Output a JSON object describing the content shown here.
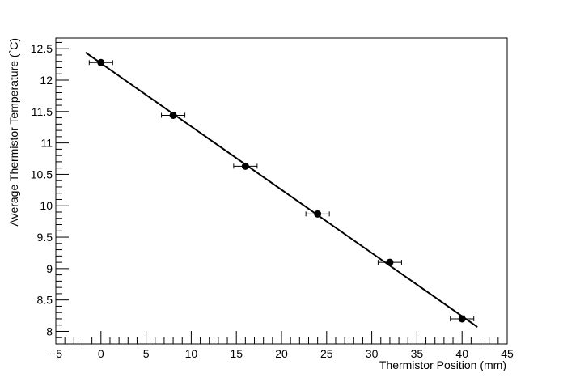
{
  "chart_data": {
    "type": "scatter",
    "title": "",
    "xlabel": "Thermistor Position (mm)",
    "ylabel": "Average Thermistor Temperature (˚C)",
    "xlim": [
      -5,
      45
    ],
    "ylim": [
      7.8,
      12.67
    ],
    "grid": false,
    "x_ticks": [
      -5,
      0,
      5,
      10,
      15,
      20,
      25,
      30,
      35,
      40,
      45
    ],
    "x_tick_labels": [
      "−5",
      "0",
      "5",
      "10",
      "15",
      "20",
      "25",
      "30",
      "35",
      "40",
      "45"
    ],
    "y_ticks": [
      8,
      8.5,
      9,
      9.5,
      10,
      10.5,
      11,
      11.5,
      12,
      12.5
    ],
    "y_tick_labels": [
      "8",
      "8.5",
      "9",
      "9.5",
      "10",
      "10.5",
      "11",
      "11.5",
      "12",
      "12.5"
    ],
    "series": [
      {
        "type": "scatter",
        "x": [
          0,
          8,
          16,
          24,
          32,
          40
        ],
        "y": [
          12.28,
          11.44,
          10.63,
          9.87,
          9.1,
          8.2
        ],
        "x_err": [
          1.3,
          1.3,
          1.3,
          1.3,
          1.3,
          1.3
        ],
        "color": "#000000"
      },
      {
        "type": "line",
        "x": [
          -1.7,
          41.7
        ],
        "y": [
          12.44,
          8.07
        ],
        "color": "#000000"
      }
    ]
  }
}
